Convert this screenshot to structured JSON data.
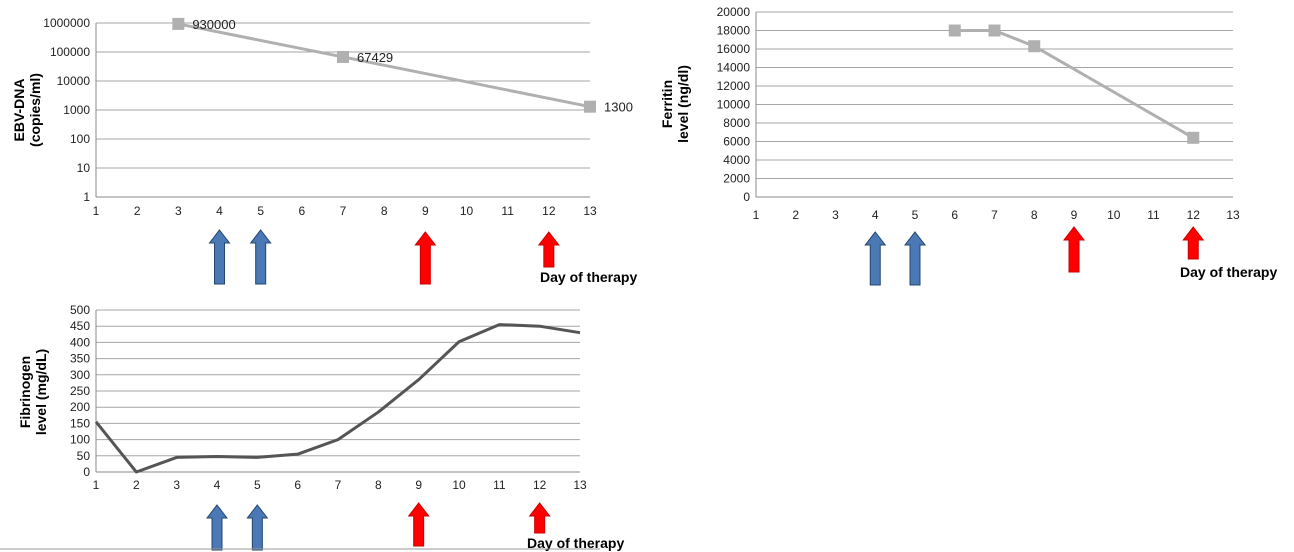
{
  "chart_data": [
    {
      "id": "ebv",
      "type": "line",
      "ylabel_lines": [
        "EBV-DNA",
        "(copies/ml)"
      ],
      "xlabel": "Day of therapy",
      "yscale": "log",
      "x_ticks": [
        "1",
        "2",
        "3",
        "4",
        "5",
        "6",
        "7",
        "8",
        "9",
        "10",
        "11",
        "12",
        "13"
      ],
      "y_ticks": [
        "1",
        "10",
        "100",
        "1000",
        "10000",
        "100000",
        "1000000"
      ],
      "xlim": [
        1,
        13
      ],
      "ylim": [
        1,
        1000000
      ],
      "series": [
        {
          "x": [
            3,
            7,
            13
          ],
          "y": [
            930000,
            67429,
            1300
          ],
          "color": "#b0b0b0",
          "marker": "square",
          "data_labels": [
            "930000",
            "67429",
            "1300"
          ]
        }
      ],
      "arrows": [
        {
          "day": 4,
          "color": "blue"
        },
        {
          "day": 5,
          "color": "blue"
        },
        {
          "day": 9,
          "color": "red"
        },
        {
          "day": 12,
          "color": "red"
        }
      ]
    },
    {
      "id": "ferritin",
      "type": "line",
      "ylabel_lines": [
        "Ferritin",
        "level (ng/dl)"
      ],
      "xlabel": "Day of therapy",
      "yscale": "linear",
      "x_ticks": [
        "1",
        "2",
        "3",
        "4",
        "5",
        "6",
        "7",
        "8",
        "9",
        "10",
        "11",
        "12",
        "13"
      ],
      "y_ticks": [
        "0",
        "2000",
        "4000",
        "6000",
        "8000",
        "10000",
        "12000",
        "14000",
        "16000",
        "18000",
        "20000"
      ],
      "xlim": [
        1,
        13
      ],
      "ylim": [
        0,
        20000
      ],
      "series": [
        {
          "x": [
            6,
            7,
            8,
            12
          ],
          "y": [
            18000,
            18000,
            16300,
            6400
          ],
          "color": "#b0b0b0",
          "marker": "square"
        }
      ],
      "arrows": [
        {
          "day": 4,
          "color": "blue"
        },
        {
          "day": 5,
          "color": "blue"
        },
        {
          "day": 9,
          "color": "red"
        },
        {
          "day": 12,
          "color": "red"
        }
      ]
    },
    {
      "id": "fibrinogen",
      "type": "line",
      "ylabel_lines": [
        "Fibrinogen",
        "level (mg/dL)"
      ],
      "xlabel": "Day of therapy",
      "yscale": "linear",
      "x_ticks": [
        "1",
        "2",
        "3",
        "4",
        "5",
        "6",
        "7",
        "8",
        "9",
        "10",
        "11",
        "12",
        "13"
      ],
      "y_ticks": [
        "0",
        "50",
        "100",
        "150",
        "200",
        "250",
        "300",
        "350",
        "400",
        "450",
        "500"
      ],
      "xlim": [
        1,
        13
      ],
      "ylim": [
        0,
        500
      ],
      "series": [
        {
          "x": [
            1,
            2,
            3,
            4,
            5,
            6,
            7,
            8,
            9,
            10,
            11,
            12,
            13
          ],
          "y": [
            155,
            0,
            45,
            48,
            45,
            55,
            100,
            185,
            285,
            402,
            455,
            450,
            430
          ],
          "color": "#555555",
          "marker": "none"
        }
      ],
      "arrows": [
        {
          "day": 4,
          "color": "blue"
        },
        {
          "day": 5,
          "color": "blue"
        },
        {
          "day": 9,
          "color": "red"
        },
        {
          "day": 12,
          "color": "red"
        }
      ]
    }
  ]
}
